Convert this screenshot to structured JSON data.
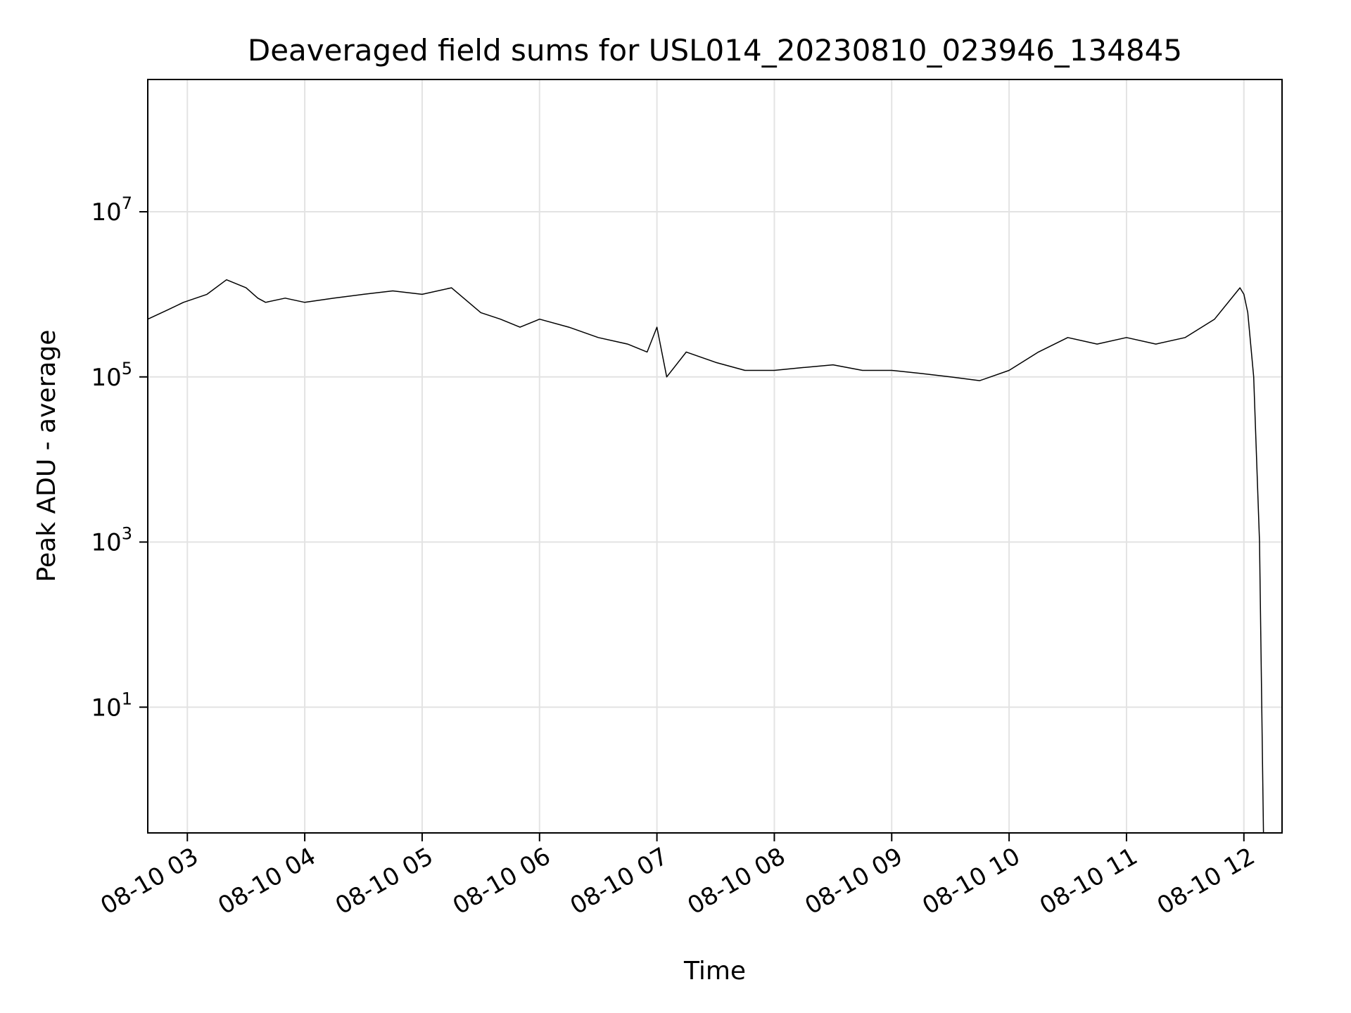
{
  "chart_data": {
    "type": "line",
    "title": "Deaveraged field sums for USL014_20230810_023946_134845",
    "xlabel": "Time",
    "ylabel": "Peak ADU - average",
    "yscale": "log",
    "ylim": [
      0.3,
      400000000
    ],
    "xlim": [
      "2023-08-10 02:39:46",
      "2023-08-10 12:19:30"
    ],
    "grid": true,
    "line_color": "#000000",
    "x_ticks": [
      {
        "t": "2023-08-10 03:00",
        "label": "08-10 03"
      },
      {
        "t": "2023-08-10 04:00",
        "label": "08-10 04"
      },
      {
        "t": "2023-08-10 05:00",
        "label": "08-10 05"
      },
      {
        "t": "2023-08-10 06:00",
        "label": "08-10 06"
      },
      {
        "t": "2023-08-10 07:00",
        "label": "08-10 07"
      },
      {
        "t": "2023-08-10 08:00",
        "label": "08-10 08"
      },
      {
        "t": "2023-08-10 09:00",
        "label": "08-10 09"
      },
      {
        "t": "2023-08-10 10:00",
        "label": "08-10 10"
      },
      {
        "t": "2023-08-10 11:00",
        "label": "08-10 11"
      },
      {
        "t": "2023-08-10 12:00",
        "label": "08-10 12"
      }
    ],
    "y_ticks": [
      {
        "value": 10,
        "base": "10",
        "exp": "1"
      },
      {
        "value": 1000,
        "base": "10",
        "exp": "3"
      },
      {
        "value": 100000,
        "base": "10",
        "exp": "5"
      },
      {
        "value": 10000000,
        "base": "10",
        "exp": "7"
      }
    ],
    "series": [
      {
        "x": [
          "2023-08-10 02:39:46",
          "2023-08-10 02:50",
          "2023-08-10 02:58",
          "2023-08-10 03:10",
          "2023-08-10 03:20",
          "2023-08-10 03:30",
          "2023-08-10 03:36",
          "2023-08-10 03:40",
          "2023-08-10 03:50",
          "2023-08-10 04:00",
          "2023-08-10 04:15",
          "2023-08-10 04:30",
          "2023-08-10 04:45",
          "2023-08-10 05:00",
          "2023-08-10 05:15",
          "2023-08-10 05:30",
          "2023-08-10 05:40",
          "2023-08-10 05:50",
          "2023-08-10 06:00",
          "2023-08-10 06:15",
          "2023-08-10 06:30",
          "2023-08-10 06:45",
          "2023-08-10 06:55",
          "2023-08-10 07:00",
          "2023-08-10 07:05",
          "2023-08-10 07:15",
          "2023-08-10 07:30",
          "2023-08-10 07:45",
          "2023-08-10 08:00",
          "2023-08-10 08:15",
          "2023-08-10 08:30",
          "2023-08-10 08:45",
          "2023-08-10 09:00",
          "2023-08-10 09:15",
          "2023-08-10 09:30",
          "2023-08-10 09:45",
          "2023-08-10 10:00",
          "2023-08-10 10:15",
          "2023-08-10 10:30",
          "2023-08-10 10:45",
          "2023-08-10 11:00",
          "2023-08-10 11:15",
          "2023-08-10 11:30",
          "2023-08-10 11:45",
          "2023-08-10 11:58",
          "2023-08-10 12:00",
          "2023-08-10 12:02",
          "2023-08-10 12:05",
          "2023-08-10 12:08",
          "2023-08-10 12:10"
        ],
        "y": [
          500000,
          650000,
          800000,
          1000000,
          1500000,
          1200000,
          900000,
          800000,
          900000,
          800000,
          900000,
          1000000,
          1100000,
          1000000,
          1200000,
          600000,
          500000,
          400000,
          500000,
          400000,
          300000,
          250000,
          200000,
          400000,
          100000,
          200000,
          150000,
          120000,
          120000,
          130000,
          140000,
          120000,
          120000,
          110000,
          100000,
          90000,
          120000,
          200000,
          300000,
          250000,
          300000,
          250000,
          300000,
          500000,
          1200000,
          1000000,
          600000,
          100000,
          1000,
          0.3
        ]
      }
    ]
  }
}
